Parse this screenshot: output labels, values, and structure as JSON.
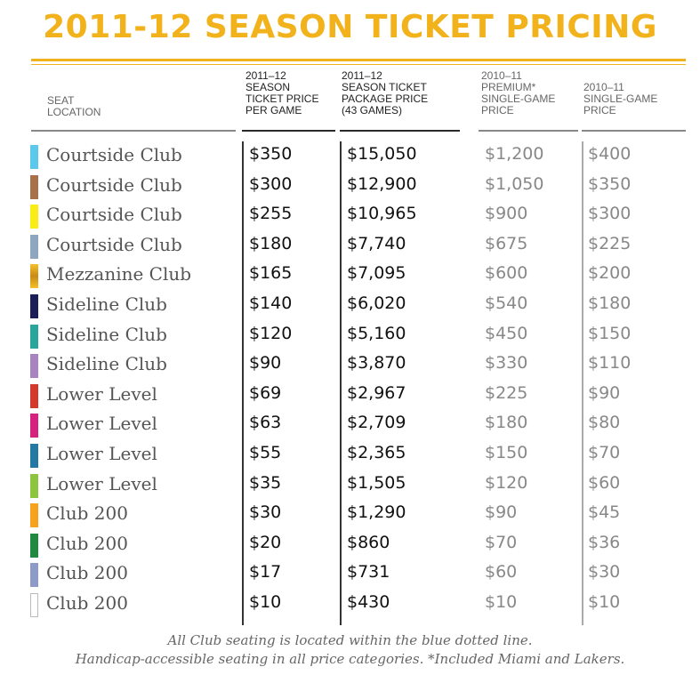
{
  "title": "2011-12 SEASON TICKET PRICING",
  "headers": {
    "seat_location": [
      "SEAT",
      "LOCATION"
    ],
    "price_per_game": [
      "2011–12",
      "SEASON",
      "TICKET PRICE",
      "PER GAME"
    ],
    "package_price": [
      "2011–12",
      "SEASON TICKET",
      "PACKAGE PRICE",
      "(43 GAMES)"
    ],
    "premium_single": [
      "2010–11",
      "PREMIUM*",
      "SINGLE-GAME",
      "PRICE"
    ],
    "single_game": [
      "2010–11",
      "SINGLE-GAME",
      "PRICE"
    ]
  },
  "rows": [
    {
      "location": "Courtside Club",
      "color": "#5bc8ec",
      "per_game": "$350",
      "package": "$15,050",
      "premium_2010": "$1,200",
      "single_2010": "$400"
    },
    {
      "location": "Courtside Club",
      "color": "#a87149",
      "per_game": "$300",
      "package": "$12,900",
      "premium_2010": "$1,050",
      "single_2010": "$350"
    },
    {
      "location": "Courtside Club",
      "color": "#f9ec17",
      "per_game": "$255",
      "package": "$10,965",
      "premium_2010": "$900",
      "single_2010": "$300"
    },
    {
      "location": "Courtside Club",
      "color": "#8fa6c0",
      "per_game": "$180",
      "package": "$7,740",
      "premium_2010": "$675",
      "single_2010": "$225"
    },
    {
      "location": "Mezzanine Club",
      "color": "#d79c1d",
      "per_game": "$165",
      "package": "$7,095",
      "premium_2010": "$600",
      "single_2010": "$200"
    },
    {
      "location": "Sideline Club",
      "color": "#1c1f55",
      "per_game": "$140",
      "package": "$6,020",
      "premium_2010": "$540",
      "single_2010": "$180"
    },
    {
      "location": "Sideline Club",
      "color": "#29a59b",
      "per_game": "$120",
      "package": "$5,160",
      "premium_2010": "$450",
      "single_2010": "$150"
    },
    {
      "location": "Sideline Club",
      "color": "#a784bf",
      "per_game": "$90",
      "package": "$3,870",
      "premium_2010": "$330",
      "single_2010": "$110"
    },
    {
      "location": "Lower Level",
      "color": "#d33a2d",
      "per_game": "$69",
      "package": "$2,967",
      "premium_2010": "$225",
      "single_2010": "$90"
    },
    {
      "location": "Lower Level",
      "color": "#d6217f",
      "per_game": "$63",
      "package": "$2,709",
      "premium_2010": "$180",
      "single_2010": "$80"
    },
    {
      "location": "Lower Level",
      "color": "#2479a4",
      "per_game": "$55",
      "package": "$2,365",
      "premium_2010": "$150",
      "single_2010": "$70"
    },
    {
      "location": "Lower Level",
      "color": "#8dc541",
      "per_game": "$35",
      "package": "$1,505",
      "premium_2010": "$120",
      "single_2010": "$60"
    },
    {
      "location": "Club 200",
      "color": "#f7a21d",
      "per_game": "$30",
      "package": "$1,290",
      "premium_2010": "$90",
      "single_2010": "$45"
    },
    {
      "location": "Club 200",
      "color": "#1f8a3f",
      "per_game": "$20",
      "package": "$860",
      "premium_2010": "$70",
      "single_2010": "$36"
    },
    {
      "location": "Club 200",
      "color": "#8e9bc8",
      "per_game": "$17",
      "package": "$731",
      "premium_2010": "$60",
      "single_2010": "$30"
    },
    {
      "location": "Club 200",
      "color": "#ffffff",
      "per_game": "$10",
      "package": "$430",
      "premium_2010": "$10",
      "single_2010": "$10"
    }
  ],
  "footnote": [
    "All Club seating is located within the blue dotted line.",
    "Handicap-accessible seating in all price categories. *Included Miami and Lakers."
  ]
}
